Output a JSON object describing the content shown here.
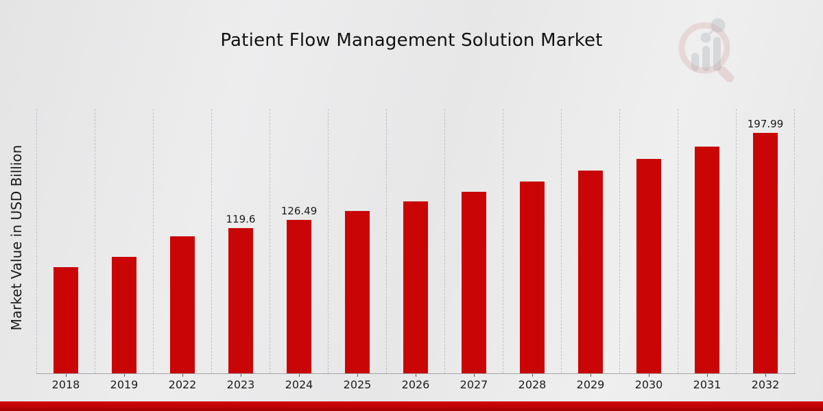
{
  "title": "Patient Flow Management Solution Market",
  "y_axis_label": "Market Value in USD Billion",
  "logo": {
    "name": "market-research-future-watermark-logo"
  },
  "colors": {
    "bar": "#c90505",
    "footer_red": "#bf0404",
    "grid": "#c0c0c2",
    "axis": "#a4a4a6",
    "text": "#1a1a1a",
    "background": "#eaeaeb"
  },
  "chart_data": {
    "type": "bar",
    "title": "Patient Flow Management Solution Market",
    "xlabel": "",
    "ylabel": "Market Value in USD Billion",
    "categories": [
      "2018",
      "2019",
      "2022",
      "2023",
      "2024",
      "2025",
      "2026",
      "2027",
      "2028",
      "2029",
      "2030",
      "2031",
      "2032"
    ],
    "values": [
      87.6,
      95.9,
      113.1,
      119.6,
      126.49,
      133.8,
      141.5,
      149.6,
      158.2,
      167.4,
      177.0,
      187.2,
      197.99
    ],
    "value_labels": {
      "2023": "119.6",
      "2024": "126.49",
      "2032": "197.99"
    },
    "ylim": [
      0,
      218
    ],
    "grid": "vertical-dashed",
    "legend": "none",
    "bar_color": "#c90505"
  }
}
